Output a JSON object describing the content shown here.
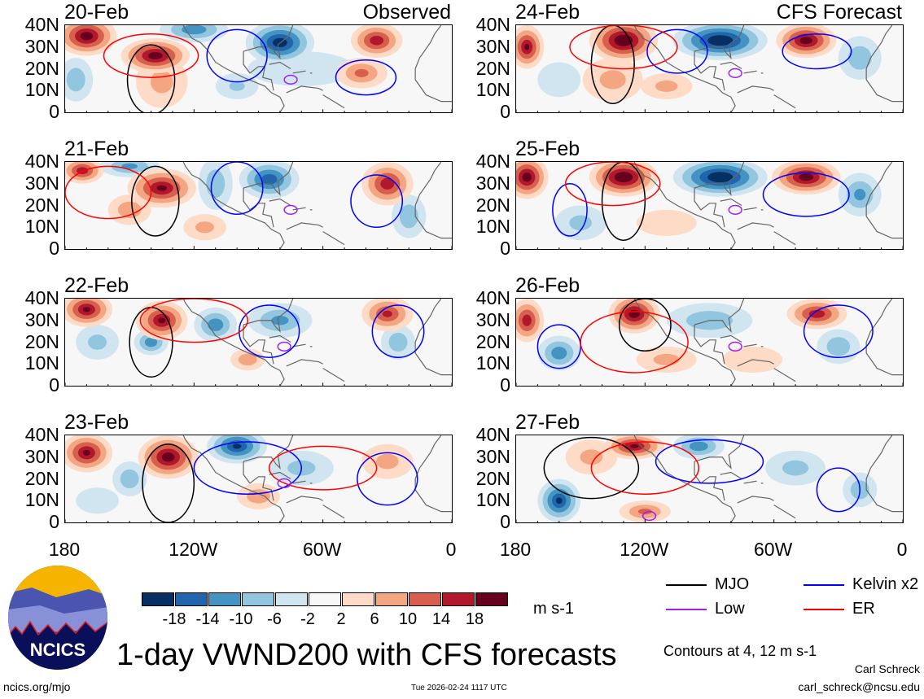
{
  "chart_data": {
    "type": "heatmap",
    "title": "1-day VWND200 with CFS forecasts",
    "units": "m s-1",
    "columns": [
      {
        "label": "Observed"
      },
      {
        "label": "CFS Forecast"
      }
    ],
    "ylabels": [
      "40N",
      "30N",
      "20N",
      "10N",
      "0"
    ],
    "xlabels": [
      "180",
      "120W",
      "60W",
      "0"
    ],
    "lon_range_W": [
      180,
      0
    ],
    "lat_range": [
      0,
      40
    ],
    "colorbar": {
      "levels": [
        "-18",
        "-14",
        "-10",
        "-6",
        "-2",
        "2",
        "6",
        "10",
        "14",
        "18"
      ],
      "colors": [
        "#053061",
        "#2166ac",
        "#4393c3",
        "#92c5de",
        "#d1e5f0",
        "#f7f7f7",
        "#fddbc7",
        "#f4a582",
        "#d6604d",
        "#b2182b",
        "#67001f"
      ]
    },
    "panels": [
      {
        "date": "20-Feb",
        "col": 0,
        "row": 0,
        "anoms": [
          [
            170,
            35,
            22,
            14,
            9
          ],
          [
            138,
            26,
            22,
            16,
            8
          ],
          [
            135,
            14,
            8,
            12,
            12
          ],
          [
            80,
            32,
            -22,
            16,
            10
          ],
          [
            120,
            38,
            -14,
            16,
            6
          ],
          [
            35,
            33,
            18,
            12,
            8
          ],
          [
            42,
            18,
            12,
            12,
            7
          ],
          [
            175,
            15,
            -10,
            8,
            10
          ],
          [
            100,
            12,
            -7,
            10,
            6
          ],
          [
            70,
            20,
            -4,
            25,
            8
          ]
        ],
        "contours": [
          [
            "black",
            140,
            15,
            11,
            16
          ],
          [
            "blue",
            100,
            26,
            14,
            12
          ],
          [
            "red",
            140,
            26,
            22,
            10
          ],
          [
            "blue",
            40,
            16,
            14,
            8
          ],
          [
            "purple",
            75,
            15,
            3,
            2
          ]
        ]
      },
      {
        "date": "21-Feb",
        "col": 0,
        "row": 1,
        "anoms": [
          [
            172,
            36,
            18,
            10,
            6
          ],
          [
            135,
            28,
            20,
            16,
            9
          ],
          [
            150,
            18,
            10,
            10,
            7
          ],
          [
            150,
            38,
            -12,
            14,
            5
          ],
          [
            85,
            32,
            -18,
            14,
            9
          ],
          [
            110,
            30,
            -10,
            8,
            12
          ],
          [
            30,
            30,
            18,
            12,
            10
          ],
          [
            20,
            15,
            -10,
            8,
            10
          ],
          [
            115,
            10,
            8,
            10,
            6
          ]
        ],
        "contours": [
          [
            "black",
            138,
            22,
            11,
            16
          ],
          [
            "blue",
            100,
            28,
            12,
            12
          ],
          [
            "blue",
            35,
            22,
            12,
            12
          ],
          [
            "red",
            160,
            26,
            20,
            12
          ],
          [
            "purple",
            75,
            18,
            3,
            2
          ]
        ]
      },
      {
        "date": "22-Feb",
        "col": 0,
        "row": 2,
        "anoms": [
          [
            170,
            35,
            20,
            12,
            8
          ],
          [
            135,
            30,
            20,
            12,
            9
          ],
          [
            140,
            20,
            -14,
            8,
            6
          ],
          [
            110,
            28,
            -14,
            10,
            8
          ],
          [
            80,
            30,
            -12,
            15,
            8
          ],
          [
            30,
            33,
            16,
            12,
            8
          ],
          [
            25,
            20,
            -10,
            8,
            8
          ],
          [
            95,
            12,
            10,
            8,
            5
          ],
          [
            165,
            20,
            -8,
            10,
            8
          ]
        ],
        "contours": [
          [
            "black",
            140,
            20,
            10,
            16
          ],
          [
            "blue",
            85,
            25,
            14,
            12
          ],
          [
            "blue",
            25,
            25,
            12,
            12
          ],
          [
            "red",
            120,
            30,
            25,
            10
          ],
          [
            "purple",
            78,
            18,
            3,
            2
          ]
        ]
      },
      {
        "date": "23-Feb",
        "col": 0,
        "row": 3,
        "anoms": [
          [
            170,
            32,
            20,
            12,
            9
          ],
          [
            132,
            30,
            22,
            14,
            10
          ],
          [
            100,
            35,
            -20,
            14,
            8
          ],
          [
            150,
            20,
            -10,
            8,
            8
          ],
          [
            70,
            25,
            -8,
            15,
            8
          ],
          [
            30,
            28,
            8,
            12,
            8
          ],
          [
            90,
            12,
            10,
            10,
            6
          ],
          [
            165,
            10,
            -6,
            10,
            6
          ]
        ],
        "contours": [
          [
            "black",
            132,
            18,
            12,
            18
          ],
          [
            "blue",
            95,
            25,
            25,
            12
          ],
          [
            "blue",
            30,
            20,
            14,
            12
          ],
          [
            "red",
            60,
            25,
            25,
            10
          ],
          [
            "purple",
            78,
            18,
            3,
            2
          ]
        ]
      },
      {
        "date": "24-Feb",
        "col": 1,
        "row": 0,
        "anoms": [
          [
            175,
            30,
            20,
            8,
            10
          ],
          [
            130,
            33,
            24,
            16,
            10
          ],
          [
            85,
            33,
            -24,
            22,
            9
          ],
          [
            45,
            33,
            22,
            14,
            8
          ],
          [
            135,
            15,
            8,
            14,
            10
          ],
          [
            110,
            12,
            8,
            12,
            6
          ],
          [
            20,
            25,
            -10,
            10,
            10
          ],
          [
            160,
            15,
            -6,
            10,
            8
          ]
        ],
        "contours": [
          [
            "black",
            135,
            22,
            10,
            18
          ],
          [
            "blue",
            105,
            28,
            14,
            10
          ],
          [
            "blue",
            40,
            28,
            16,
            8
          ],
          [
            "red",
            130,
            30,
            25,
            10
          ],
          [
            "purple",
            78,
            18,
            3,
            2
          ]
        ]
      },
      {
        "date": "25-Feb",
        "col": 1,
        "row": 1,
        "anoms": [
          [
            175,
            33,
            22,
            10,
            10
          ],
          [
            130,
            33,
            24,
            16,
            9
          ],
          [
            85,
            33,
            -24,
            22,
            9
          ],
          [
            45,
            33,
            22,
            16,
            8
          ],
          [
            20,
            25,
            -12,
            10,
            10
          ],
          [
            150,
            12,
            -8,
            12,
            8
          ],
          [
            110,
            12,
            6,
            14,
            6
          ]
        ],
        "contours": [
          [
            "black",
            130,
            22,
            10,
            18
          ],
          [
            "blue",
            155,
            18,
            8,
            12
          ],
          [
            "blue",
            45,
            25,
            20,
            10
          ],
          [
            "red",
            135,
            30,
            22,
            10
          ],
          [
            "purple",
            78,
            18,
            3,
            2
          ]
        ]
      },
      {
        "date": "26-Feb",
        "col": 1,
        "row": 2,
        "anoms": [
          [
            175,
            30,
            18,
            8,
            10
          ],
          [
            125,
            33,
            22,
            12,
            9
          ],
          [
            160,
            15,
            -14,
            10,
            8
          ],
          [
            90,
            30,
            -10,
            20,
            8
          ],
          [
            40,
            33,
            18,
            14,
            7
          ],
          [
            30,
            18,
            -10,
            10,
            8
          ],
          [
            110,
            12,
            8,
            14,
            6
          ],
          [
            70,
            12,
            6,
            14,
            6
          ]
        ],
        "contours": [
          [
            "black",
            120,
            28,
            12,
            12
          ],
          [
            "blue",
            160,
            18,
            10,
            10
          ],
          [
            "blue",
            30,
            25,
            16,
            12
          ],
          [
            "red",
            125,
            20,
            25,
            14
          ],
          [
            "purple",
            78,
            18,
            3,
            2
          ]
        ]
      },
      {
        "date": "27-Feb",
        "col": 1,
        "row": 3,
        "anoms": [
          [
            125,
            35,
            20,
            14,
            6
          ],
          [
            160,
            10,
            -20,
            10,
            10
          ],
          [
            95,
            35,
            -14,
            12,
            6
          ],
          [
            50,
            25,
            -8,
            14,
            8
          ],
          [
            20,
            15,
            -10,
            8,
            8
          ],
          [
            120,
            5,
            12,
            12,
            5
          ],
          [
            145,
            30,
            8,
            12,
            8
          ]
        ],
        "contours": [
          [
            "black",
            145,
            25,
            22,
            14
          ],
          [
            "blue",
            90,
            28,
            25,
            10
          ],
          [
            "blue",
            30,
            15,
            10,
            10
          ],
          [
            "red",
            120,
            25,
            25,
            12
          ],
          [
            "purple",
            118,
            3,
            3,
            2
          ]
        ]
      }
    ]
  },
  "legend": {
    "items": [
      {
        "label": "MJO",
        "color": "#000000"
      },
      {
        "label": "Kelvin x2",
        "color": "#0000ff"
      },
      {
        "label": "Low",
        "color": "#a020f0"
      },
      {
        "label": "ER",
        "color": "#ff0000"
      }
    ],
    "contours_note": "Contours at 4, 12 m s-1"
  },
  "logo": {
    "text": "NCICS"
  },
  "footer": {
    "url": "ncics.org/mjo",
    "timestamp": "Tue 2026-02-24 1117 UTC",
    "author": "Carl Schreck",
    "email": "carl_schreck@ncsu.edu"
  }
}
